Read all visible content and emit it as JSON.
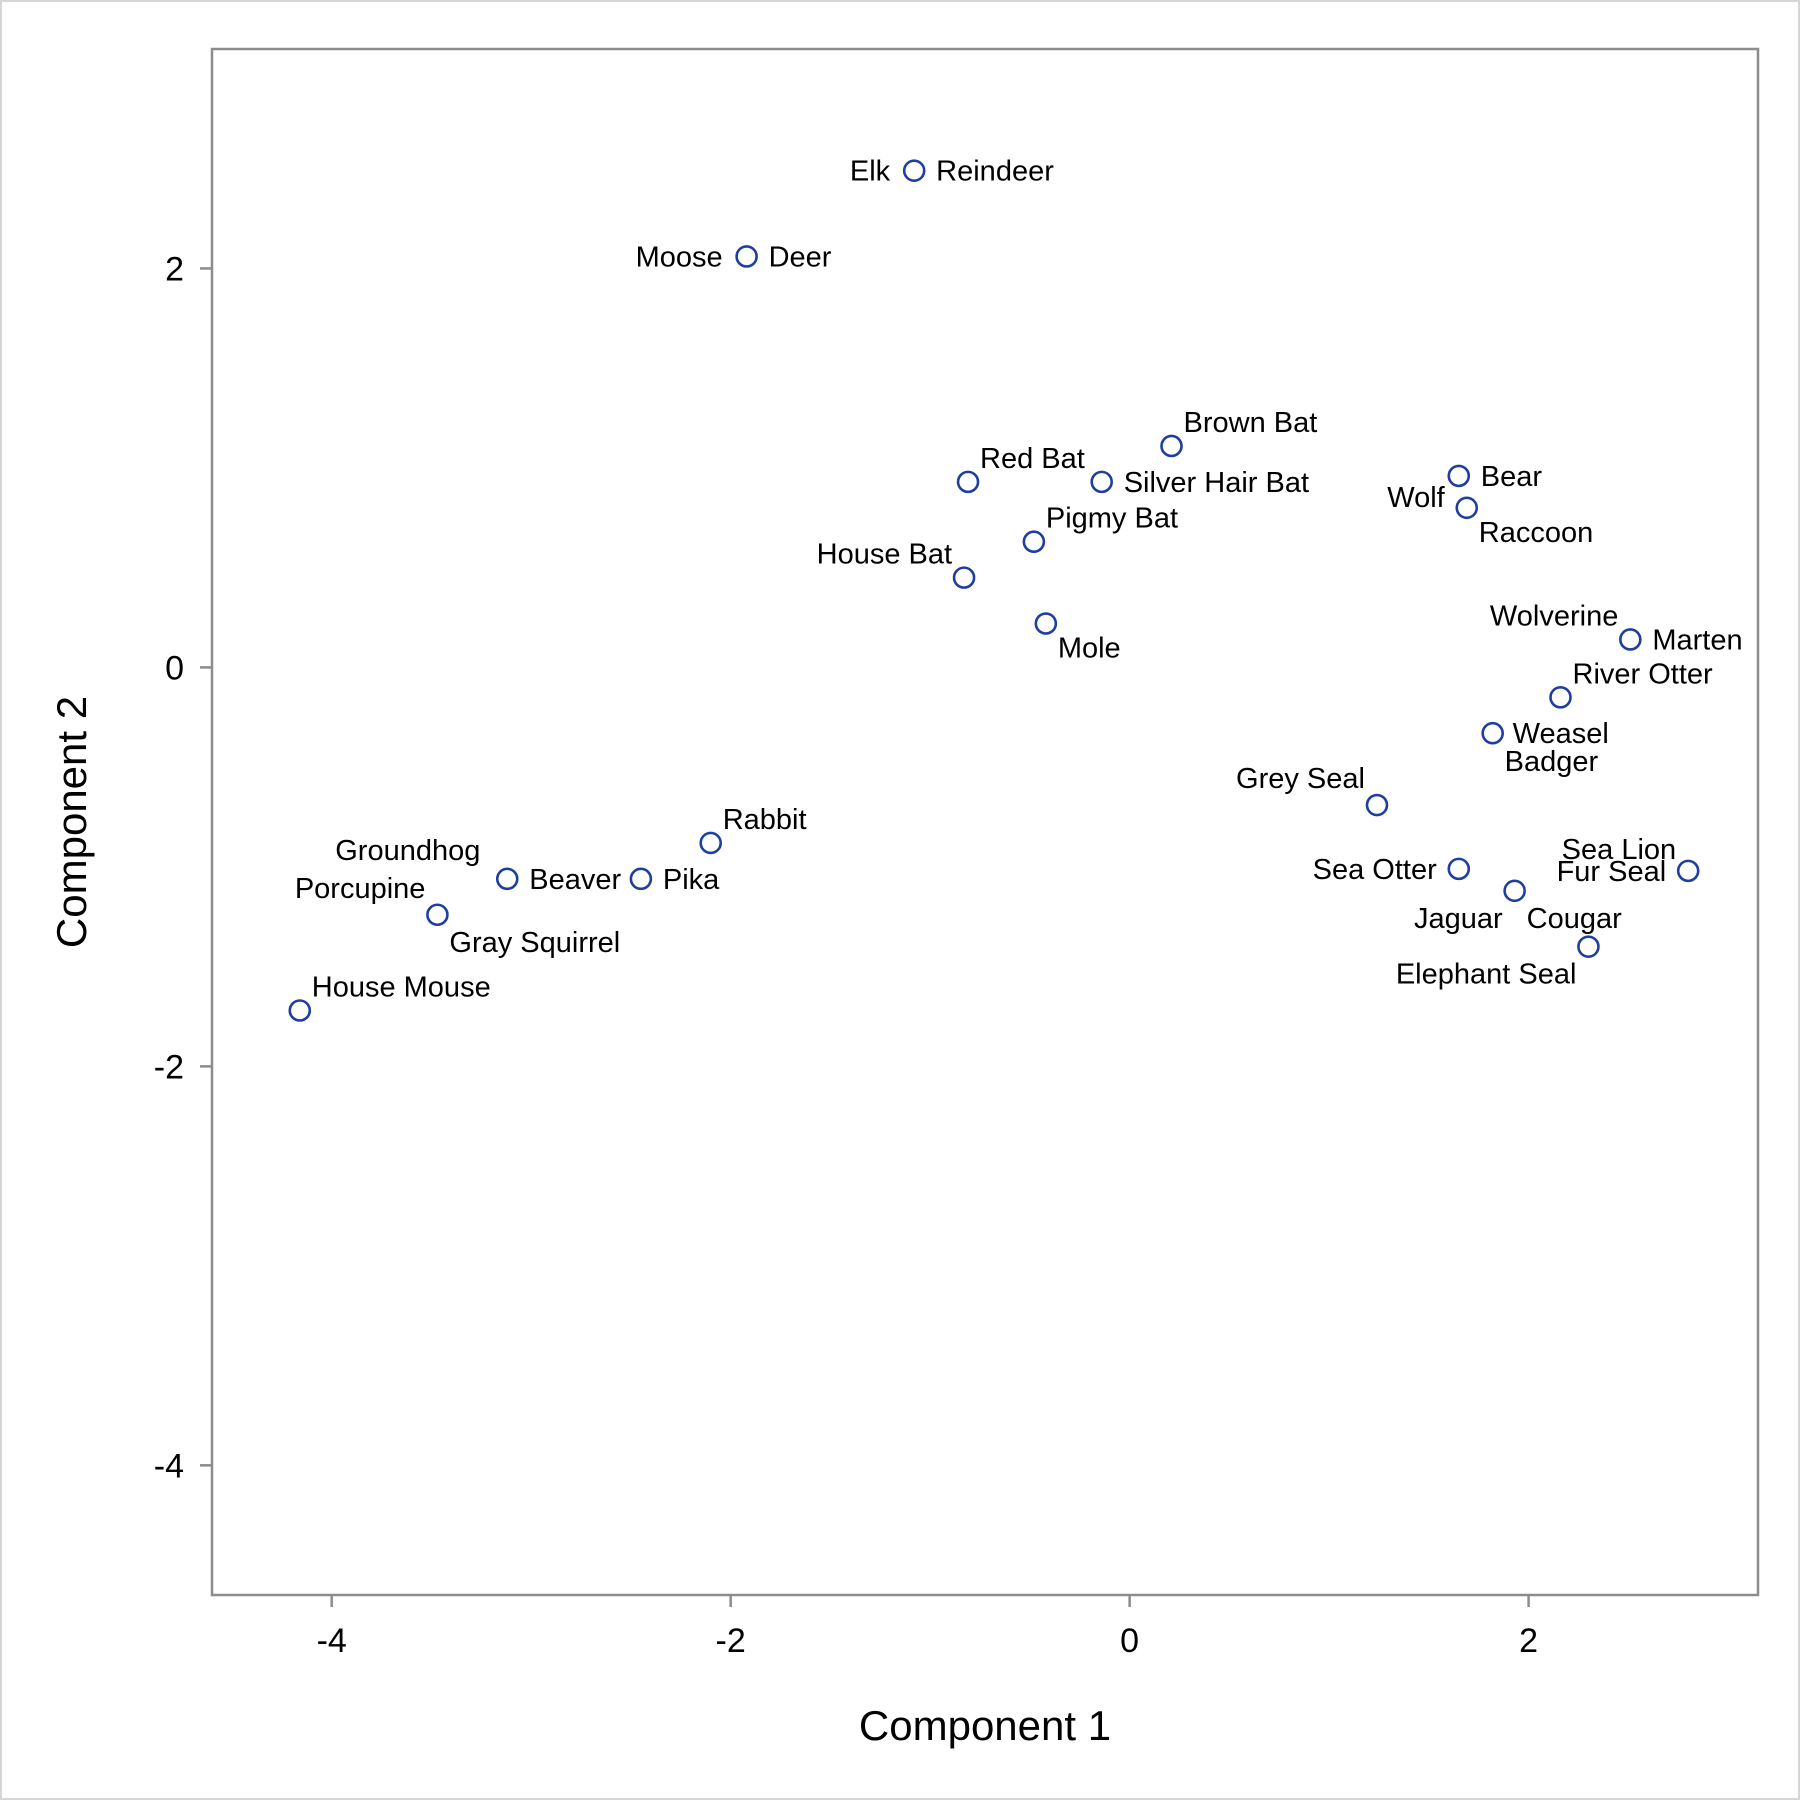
{
  "colors": {
    "marker": "#1f3fa0",
    "frame": "#8c8c8c",
    "background": "#ffffff"
  },
  "chart_data": {
    "type": "scatter",
    "title": "",
    "xlabel": "Component 1",
    "ylabel": "Component 2",
    "xlim": [
      -4.6,
      3.15
    ],
    "ylim": [
      -4.65,
      3.1
    ],
    "xticks": [
      -4,
      -2,
      0,
      2
    ],
    "yticks": [
      -4,
      -2,
      0,
      2
    ],
    "xtick_labels": [
      "-4",
      "-2",
      "0",
      "2"
    ],
    "ytick_labels": [
      "-4",
      "-2",
      "0",
      "2"
    ],
    "grid": false,
    "legend": "none",
    "marker": "open-circle",
    "points": [
      {
        "label": "Elk",
        "x": -1.08,
        "y": 2.49
      },
      {
        "label": "Reindeer",
        "x": -1.08,
        "y": 2.49
      },
      {
        "label": "Moose",
        "x": -1.92,
        "y": 2.06
      },
      {
        "label": "Deer",
        "x": -1.92,
        "y": 2.06
      },
      {
        "label": "Brown Bat",
        "x": 0.21,
        "y": 1.11
      },
      {
        "label": "Red Bat",
        "x": -0.81,
        "y": 0.93
      },
      {
        "label": "Silver Hair Bat",
        "x": -0.14,
        "y": 0.93
      },
      {
        "label": "Pigmy Bat",
        "x": -0.48,
        "y": 0.63
      },
      {
        "label": "House Bat",
        "x": -0.83,
        "y": 0.45
      },
      {
        "label": "Mole",
        "x": -0.42,
        "y": 0.22
      },
      {
        "label": "Bear",
        "x": 1.65,
        "y": 0.96
      },
      {
        "label": "Wolf",
        "x": 1.69,
        "y": 0.8
      },
      {
        "label": "Raccoon",
        "x": 1.69,
        "y": 0.8
      },
      {
        "label": "Wolverine",
        "x": 2.51,
        "y": 0.14
      },
      {
        "label": "Marten",
        "x": 2.51,
        "y": 0.14
      },
      {
        "label": "River Otter",
        "x": 2.16,
        "y": -0.15
      },
      {
        "label": "Weasel",
        "x": 1.82,
        "y": -0.33
      },
      {
        "label": "Badger",
        "x": 1.82,
        "y": -0.33
      },
      {
        "label": "Grey Seal",
        "x": 1.24,
        "y": -0.69
      },
      {
        "label": "Sea Otter",
        "x": 1.65,
        "y": -1.01
      },
      {
        "label": "Sea Lion",
        "x": 2.8,
        "y": -1.02
      },
      {
        "label": "Fur Seal",
        "x": 2.8,
        "y": -1.02
      },
      {
        "label": "Jaguar",
        "x": 1.93,
        "y": -1.12
      },
      {
        "label": "Cougar",
        "x": 1.93,
        "y": -1.12
      },
      {
        "label": "Elephant Seal",
        "x": 2.3,
        "y": -1.4
      },
      {
        "label": "Rabbit",
        "x": -2.1,
        "y": -0.88
      },
      {
        "label": "Groundhog",
        "x": -3.12,
        "y": -1.06
      },
      {
        "label": "Beaver",
        "x": -3.12,
        "y": -1.06
      },
      {
        "label": "Pika",
        "x": -2.45,
        "y": -1.06
      },
      {
        "label": "Porcupine",
        "x": -3.47,
        "y": -1.24
      },
      {
        "label": "Gray Squirrel",
        "x": -3.47,
        "y": -1.24
      },
      {
        "label": "House Mouse",
        "x": -4.16,
        "y": -1.72
      }
    ]
  }
}
